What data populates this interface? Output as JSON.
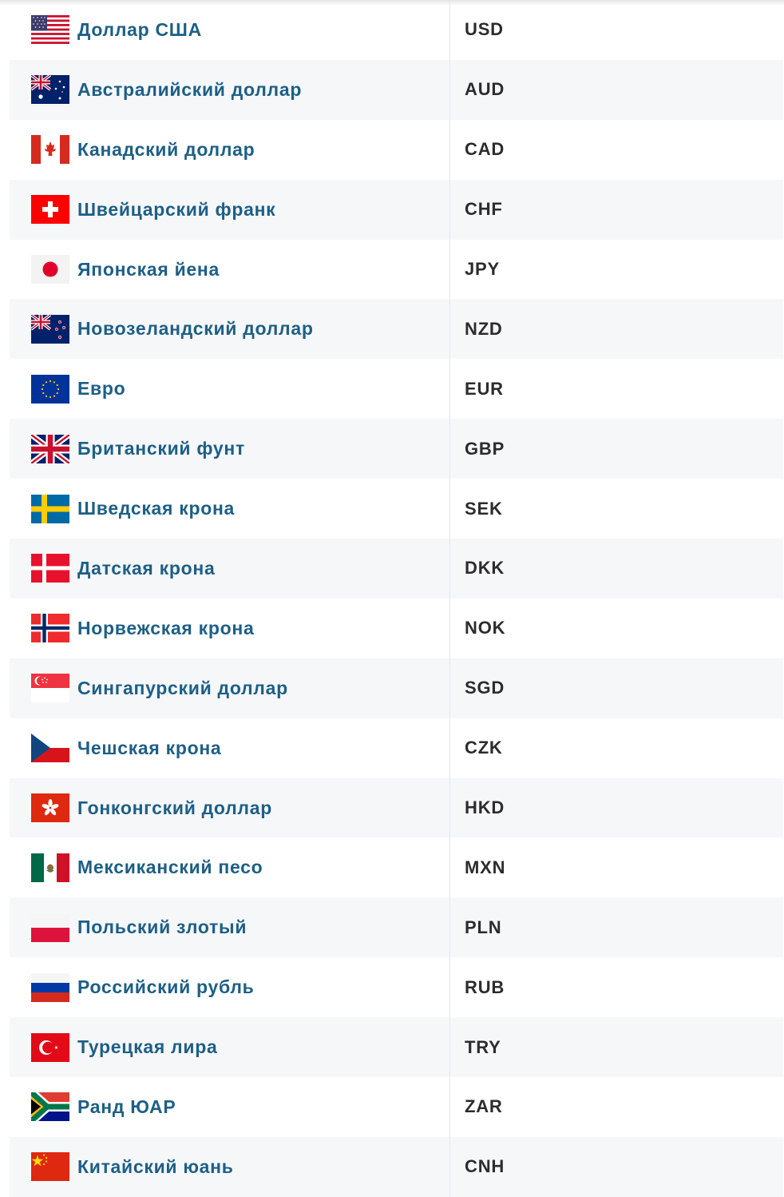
{
  "currencies": [
    {
      "flag": "flag-usa-icon",
      "name": "Доллар США",
      "code": "USD"
    },
    {
      "flag": "flag-australia-icon",
      "name": "Австралийский доллар",
      "code": "AUD"
    },
    {
      "flag": "flag-canada-icon",
      "name": "Канадский доллар",
      "code": "CAD"
    },
    {
      "flag": "flag-switzerland-icon",
      "name": "Швейцарский франк",
      "code": "CHF"
    },
    {
      "flag": "flag-japan-icon",
      "name": "Японская йена",
      "code": "JPY"
    },
    {
      "flag": "flag-new-zealand-icon",
      "name": "Новозеландский доллар",
      "code": "NZD"
    },
    {
      "flag": "flag-eu-icon",
      "name": "Евро",
      "code": "EUR"
    },
    {
      "flag": "flag-uk-icon",
      "name": "Британский фунт",
      "code": "GBP"
    },
    {
      "flag": "flag-sweden-icon",
      "name": "Шведская крона",
      "code": "SEK"
    },
    {
      "flag": "flag-denmark-icon",
      "name": "Датская крона",
      "code": "DKK"
    },
    {
      "flag": "flag-norway-icon",
      "name": "Норвежская крона",
      "code": "NOK"
    },
    {
      "flag": "flag-singapore-icon",
      "name": "Сингапурский доллар",
      "code": "SGD"
    },
    {
      "flag": "flag-czech-icon",
      "name": "Чешская крона",
      "code": "CZK"
    },
    {
      "flag": "flag-hong-kong-icon",
      "name": "Гонконгский доллар",
      "code": "HKD"
    },
    {
      "flag": "flag-mexico-icon",
      "name": "Мексиканский песо",
      "code": "MXN"
    },
    {
      "flag": "flag-poland-icon",
      "name": "Польский злотый",
      "code": "PLN"
    },
    {
      "flag": "flag-russia-icon",
      "name": "Российский рубль",
      "code": "RUB"
    },
    {
      "flag": "flag-turkey-icon",
      "name": "Турецкая лира",
      "code": "TRY"
    },
    {
      "flag": "flag-south-africa-icon",
      "name": "Ранд ЮАР",
      "code": "ZAR"
    },
    {
      "flag": "flag-china-icon",
      "name": "Китайский юань",
      "code": "CNH"
    }
  ],
  "colors": {
    "link": "#1d5f86",
    "code_text": "#2c2c2c",
    "row_alt": "#f6f7f9",
    "divider": "#e3e5ea"
  }
}
